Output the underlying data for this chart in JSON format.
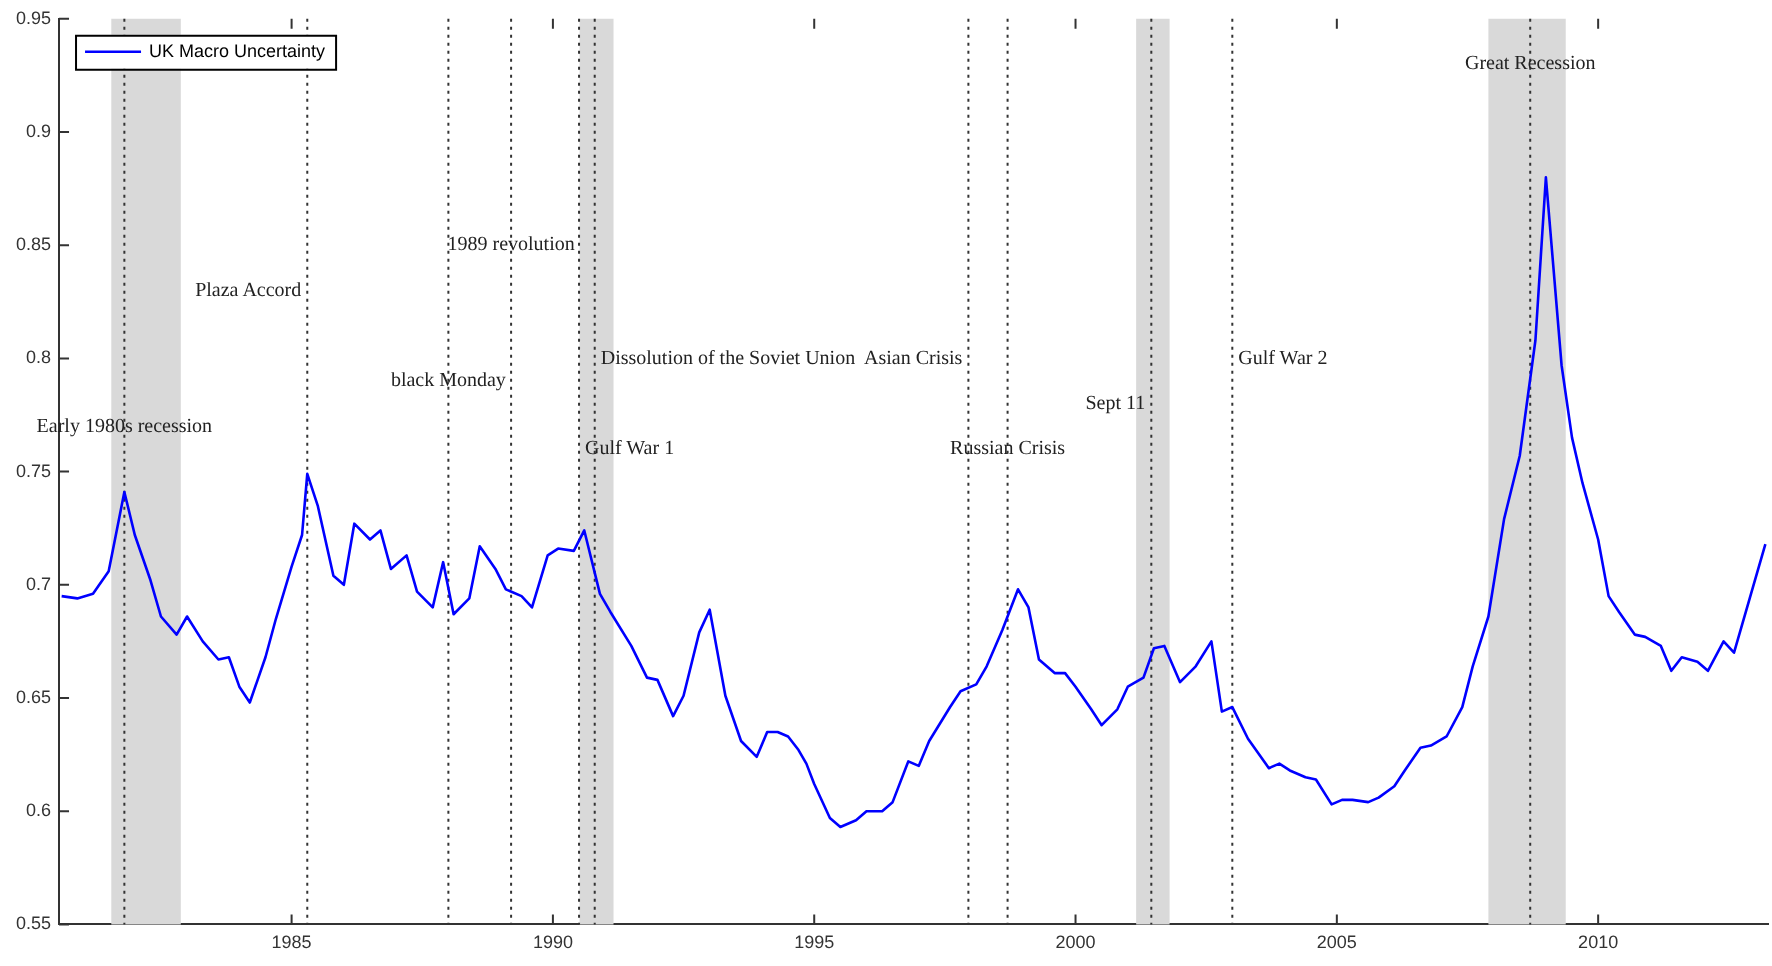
{
  "chart_data": {
    "type": "line",
    "legend": "top left",
    "grid": false,
    "marker": "none",
    "line_style": "solid",
    "xlim": [
      1980.55,
      2013.25
    ],
    "xticks": [
      1985,
      1990,
      1995,
      2000,
      2005,
      2010
    ],
    "ylim": [
      0.55,
      0.95
    ],
    "yticks": [
      0.55,
      0.6,
      0.65,
      0.7,
      0.75,
      0.8,
      0.85,
      0.9,
      0.95
    ],
    "series": [
      {
        "name": "UK Macro Uncertainty",
        "color": "#0000ff",
        "x": [
          1980.6,
          1980.9,
          1981.2,
          1981.5,
          1981.8,
          1982.0,
          1982.3,
          1982.5,
          1982.8,
          1983.0,
          1983.3,
          1983.6,
          1983.8,
          1984.0,
          1984.2,
          1984.5,
          1984.7,
          1985.0,
          1985.2,
          1985.3,
          1985.5,
          1985.8,
          1986.0,
          1986.2,
          1986.5,
          1986.7,
          1986.9,
          1987.2,
          1987.4,
          1987.7,
          1987.9,
          1988.1,
          1988.4,
          1988.6,
          1988.9,
          1989.1,
          1989.4,
          1989.6,
          1989.9,
          1990.1,
          1990.4,
          1990.6,
          1990.9,
          1991.1,
          1991.5,
          1991.8,
          1992.0,
          1992.3,
          1992.5,
          1992.8,
          1993.0,
          1993.3,
          1993.6,
          1993.9,
          1994.1,
          1994.3,
          1994.5,
          1994.7,
          1994.85,
          1995.0,
          1995.3,
          1995.5,
          1995.8,
          1996.0,
          1996.3,
          1996.5,
          1996.8,
          1997.0,
          1997.2,
          1997.6,
          1997.8,
          1998.1,
          1998.3,
          1998.6,
          1998.9,
          1999.1,
          1999.3,
          1999.6,
          1999.8,
          2000.0,
          2000.3,
          2000.5,
          2000.8,
          2001.0,
          2001.3,
          2001.5,
          2001.7,
          2002.0,
          2002.3,
          2002.6,
          2002.8,
          2003.0,
          2003.3,
          2003.7,
          2003.9,
          2004.1,
          2004.4,
          2004.6,
          2004.9,
          2005.1,
          2005.3,
          2005.6,
          2005.8,
          2006.1,
          2006.3,
          2006.6,
          2006.8,
          2007.1,
          2007.4,
          2007.6,
          2007.9,
          2008.2,
          2008.5,
          2008.8,
          2009.0,
          2009.3,
          2009.5,
          2009.7,
          2010.0,
          2010.2,
          2010.4,
          2010.7,
          2010.9,
          2011.2,
          2011.4,
          2011.6,
          2011.9,
          2012.1,
          2012.4,
          2012.6,
          2012.9,
          2013.2
        ],
        "values": [
          0.695,
          0.694,
          0.696,
          0.706,
          0.741,
          0.722,
          0.702,
          0.686,
          0.678,
          0.686,
          0.675,
          0.667,
          0.668,
          0.655,
          0.648,
          0.668,
          0.685,
          0.708,
          0.722,
          0.749,
          0.735,
          0.704,
          0.7,
          0.727,
          0.72,
          0.724,
          0.707,
          0.713,
          0.697,
          0.69,
          0.71,
          0.687,
          0.694,
          0.717,
          0.707,
          0.698,
          0.695,
          0.69,
          0.713,
          0.716,
          0.715,
          0.724,
          0.696,
          0.688,
          0.673,
          0.659,
          0.658,
          0.642,
          0.651,
          0.679,
          0.689,
          0.651,
          0.631,
          0.624,
          0.635,
          0.635,
          0.633,
          0.627,
          0.621,
          0.612,
          0.597,
          0.593,
          0.596,
          0.6,
          0.6,
          0.604,
          0.622,
          0.62,
          0.631,
          0.646,
          0.653,
          0.656,
          0.664,
          0.68,
          0.698,
          0.69,
          0.667,
          0.661,
          0.661,
          0.655,
          0.645,
          0.638,
          0.645,
          0.655,
          0.659,
          0.672,
          0.673,
          0.657,
          0.664,
          0.675,
          0.644,
          0.646,
          0.632,
          0.619,
          0.621,
          0.618,
          0.615,
          0.614,
          0.603,
          0.605,
          0.605,
          0.604,
          0.606,
          0.611,
          0.618,
          0.628,
          0.629,
          0.633,
          0.646,
          0.664,
          0.686,
          0.729,
          0.757,
          0.808,
          0.88,
          0.797,
          0.765,
          0.745,
          0.72,
          0.695,
          0.688,
          0.678,
          0.677,
          0.673,
          0.662,
          0.668,
          0.666,
          0.662,
          0.675,
          0.67,
          0.694,
          0.718
        ]
      }
    ],
    "bands": [
      {
        "axis": "x",
        "from": 1981.55,
        "to": 1982.88,
        "color": "#d9d9d9"
      },
      {
        "axis": "x",
        "from": 1990.51,
        "to": 1991.16,
        "color": "#d9d9d9"
      },
      {
        "axis": "x",
        "from": 2001.16,
        "to": 2001.8,
        "color": "#d9d9d9"
      },
      {
        "axis": "x",
        "from": 2007.9,
        "to": 2009.38,
        "color": "#d9d9d9"
      }
    ],
    "ref_lines": [
      {
        "axis": "x",
        "value": 1981.8,
        "label": "Early 1980s recession",
        "color": "#333333",
        "line_style": "dotted"
      },
      {
        "axis": "x",
        "value": 1985.3,
        "label": "Plaza Accord",
        "color": "#333333",
        "line_style": "dotted"
      },
      {
        "axis": "x",
        "value": 1988.0,
        "label": "black Monday",
        "color": "#333333",
        "line_style": "dotted"
      },
      {
        "axis": "x",
        "value": 1989.2,
        "label": "1989 revolution",
        "color": "#333333",
        "line_style": "dotted"
      },
      {
        "axis": "x",
        "value": 1990.5,
        "label": "Gulf War 1",
        "color": "#333333",
        "line_style": "dotted"
      },
      {
        "axis": "x",
        "value": 1990.8,
        "label": "Dissolution of the Soviet Union",
        "color": "#333333",
        "line_style": "dotted"
      },
      {
        "axis": "x",
        "value": 1997.95,
        "label": "Asian Crisis",
        "color": "#333333",
        "line_style": "dotted"
      },
      {
        "axis": "x",
        "value": 1998.7,
        "label": "Russian Crisis",
        "color": "#333333",
        "line_style": "dotted"
      },
      {
        "axis": "x",
        "value": 2001.45,
        "label": "Sept 11",
        "color": "#333333",
        "line_style": "dotted"
      },
      {
        "axis": "x",
        "value": 2003.0,
        "label": "Gulf War 2",
        "color": "#333333",
        "line_style": "dotted"
      },
      {
        "axis": "x",
        "value": 2008.7,
        "label": "Great Recession",
        "color": "#333333",
        "line_style": "dotted"
      }
    ]
  }
}
